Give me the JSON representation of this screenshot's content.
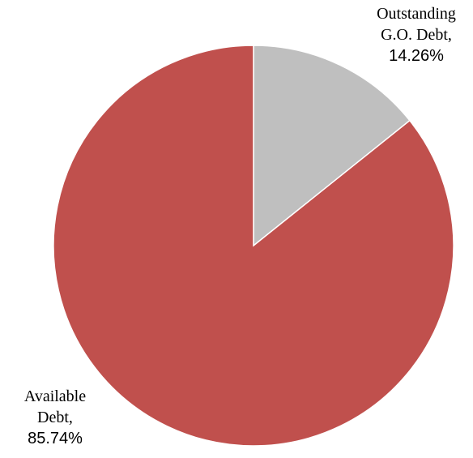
{
  "chart_data": {
    "type": "pie",
    "slices": [
      {
        "label_lines": [
          "Outstanding",
          "G.O. Debt,"
        ],
        "percent_text": "14.26%",
        "value": 14.26,
        "color": "#bfbfbf"
      },
      {
        "label_lines": [
          "Available",
          "Debt,"
        ],
        "percent_text": "85.74%",
        "value": 85.74,
        "color": "#c0504d"
      }
    ],
    "start_angle": "12 o'clock",
    "direction": "clockwise",
    "legend": "none",
    "data_labels": "outside"
  }
}
